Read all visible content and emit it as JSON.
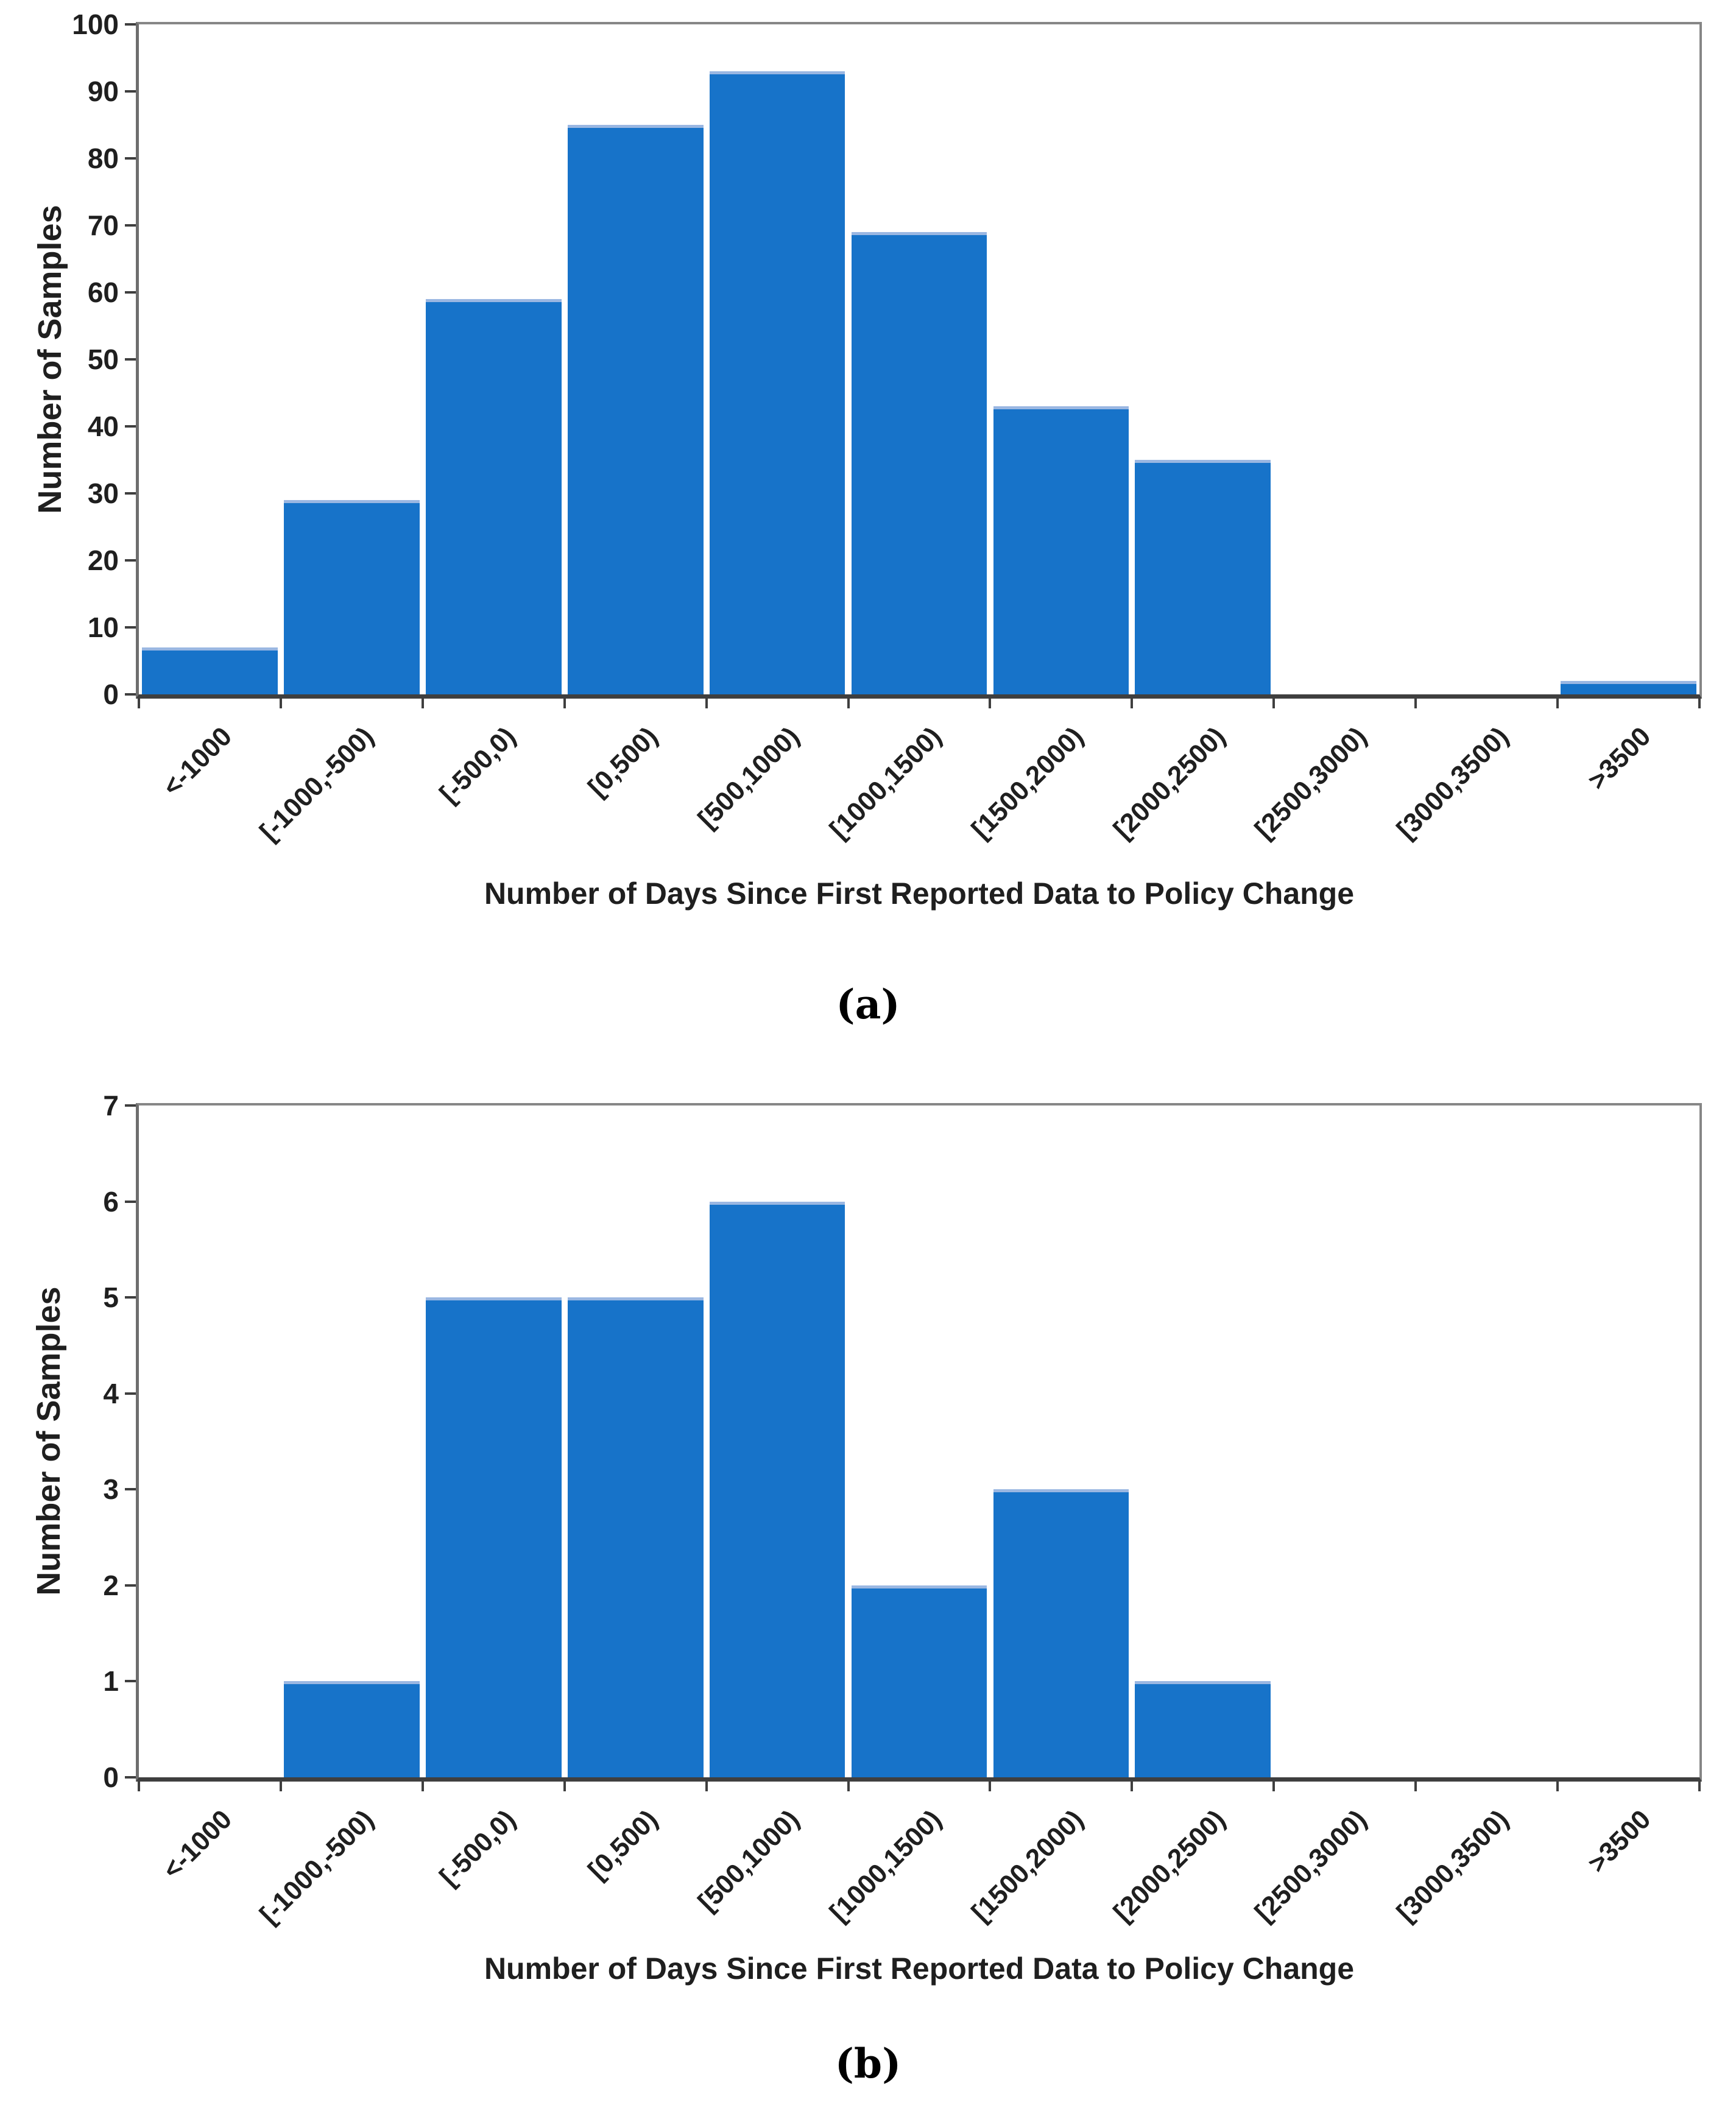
{
  "colors": {
    "bar": "#1773C9",
    "bar_top_edge": "#9AB7E2",
    "axis_dark": "#3F3F3F",
    "frame_gray": "#868686",
    "text": "#1F1F1F",
    "background": "#FFFFFF"
  },
  "chart_data": [
    {
      "type": "bar",
      "panel": "a",
      "caption": "(a)",
      "title": "",
      "categories": [
        "<-1000",
        "[-1000,-500)",
        "[-500,0)",
        "[0,500)",
        "[500,1000)",
        "[1000,1500)",
        "[1500,2000)",
        "[2000,2500)",
        "[2500,3000)",
        "[3000,3500)",
        ">3500"
      ],
      "values": [
        7,
        29,
        59,
        85,
        93,
        69,
        43,
        35,
        0,
        0,
        2
      ],
      "xlabel": "Number of Days Since First Reported Data to Policy Change",
      "ylabel": "Number of Samples",
      "ylim": [
        0,
        100
      ],
      "yticks": [
        0,
        10,
        20,
        30,
        40,
        50,
        60,
        70,
        80,
        90,
        100
      ],
      "grid": false,
      "legend_position": "none",
      "xtick_rotation_deg": 45
    },
    {
      "type": "bar",
      "panel": "b",
      "caption": "(b)",
      "title": "",
      "categories": [
        "<-1000",
        "[-1000,-500)",
        "[-500,0)",
        "[0,500)",
        "[500,1000)",
        "[1000,1500)",
        "[1500,2000)",
        "[2000,2500)",
        "[2500,3000)",
        "[3000,3500)",
        ">3500"
      ],
      "values": [
        0,
        1,
        5,
        5,
        6,
        2,
        3,
        1,
        0,
        0,
        0
      ],
      "xlabel": "Number of Days Since First Reported Data to Policy Change",
      "ylabel": "Number of Samples",
      "ylim": [
        0,
        7
      ],
      "yticks": [
        0,
        1,
        2,
        3,
        4,
        5,
        6,
        7
      ],
      "grid": false,
      "legend_position": "none",
      "xtick_rotation_deg": 45
    }
  ]
}
